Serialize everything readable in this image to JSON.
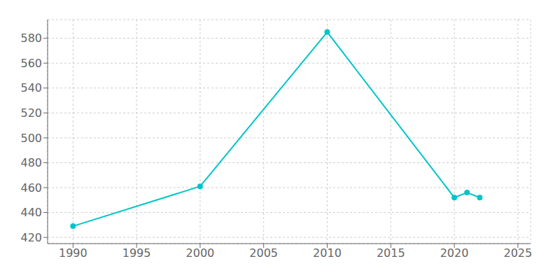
{
  "chart_data": {
    "type": "line",
    "x": [
      1990,
      2000,
      2010,
      2020,
      2021,
      2022
    ],
    "values": [
      429,
      461,
      585,
      452,
      456,
      452
    ],
    "color": "#00C5C8",
    "marker": "circle",
    "xlim": [
      1988,
      2026
    ],
    "ylim": [
      415,
      595
    ],
    "xticks": [
      1990,
      1995,
      2000,
      2005,
      2010,
      2015,
      2020,
      2025
    ],
    "yticks": [
      420,
      440,
      460,
      480,
      500,
      520,
      540,
      560,
      580
    ],
    "grid": true
  }
}
